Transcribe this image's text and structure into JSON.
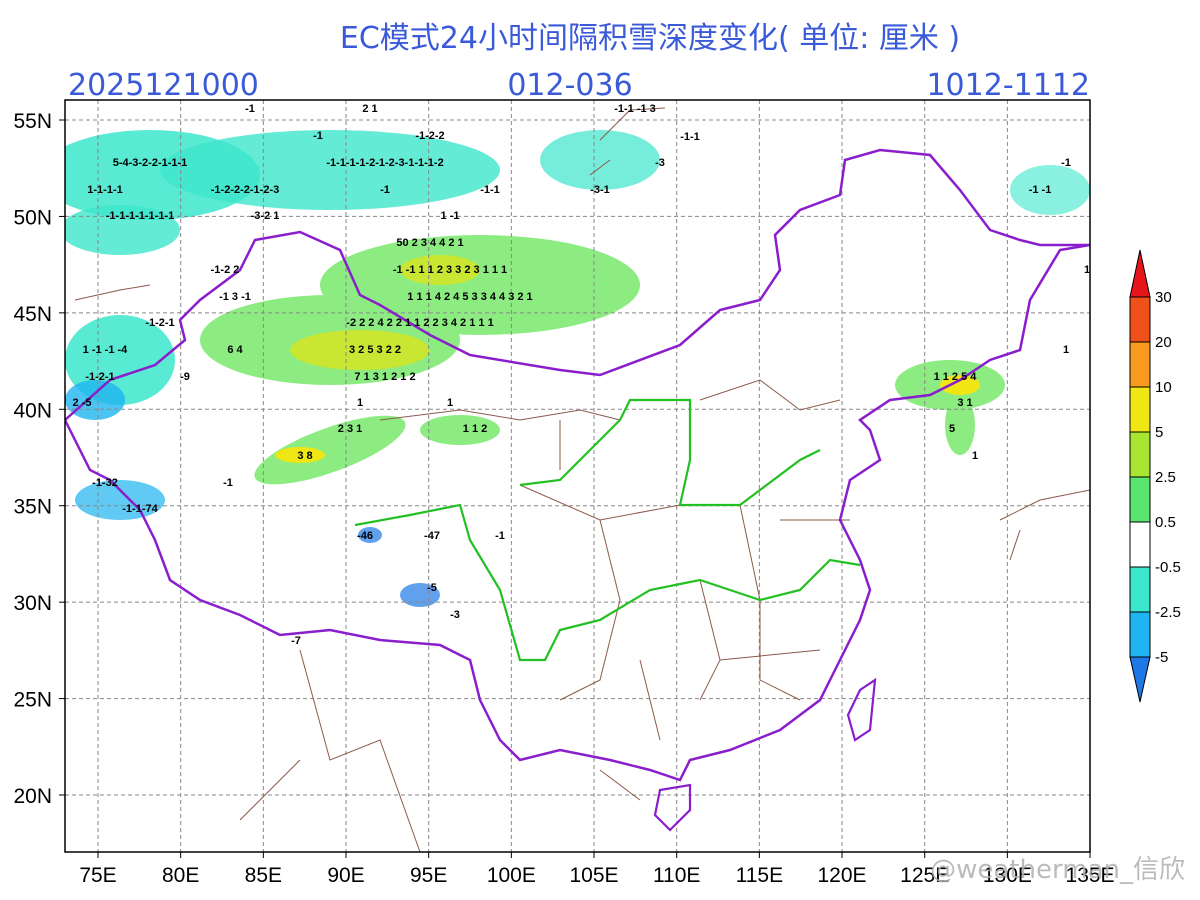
{
  "header": {
    "title": "EC模式24小时间隔积雪深度变化( 单位: 厘米 )",
    "init_time": "2025121000",
    "forecast_hours": "012-036",
    "valid_period": "1012-1112"
  },
  "axes": {
    "lat_ticks": [
      "55N",
      "50N",
      "45N",
      "40N",
      "35N",
      "30N",
      "25N",
      "20N"
    ],
    "lon_ticks": [
      "75E",
      "80E",
      "85E",
      "90E",
      "95E",
      "100E",
      "105E",
      "110E",
      "115E",
      "120E",
      "125E",
      "130E",
      "135E"
    ]
  },
  "colorbar": {
    "labels": [
      "30",
      "20",
      "10",
      "5",
      "2.5",
      "0.5",
      "-0.5",
      "-2.5",
      "-5"
    ],
    "colors": [
      "#e8141c",
      "#f0501a",
      "#f89a1e",
      "#f0e614",
      "#a8e632",
      "#5ae66e",
      "#ffffff",
      "#3ce6cc",
      "#1eb4f0",
      "#1e78e6"
    ]
  },
  "map_labels": [
    "-1",
    "2 1",
    "-1",
    "-1-2-2",
    "5-4-3-2-2-1-1-1",
    "-1-1-1-1-2-1-2-3-1-1-1-2",
    "1-1-1-1",
    "-1-2-2-2-1-2-3",
    "-1",
    "-1-1",
    "-1-1-1-1-1-1-1",
    "-3-2 1",
    "1 -1",
    "-1-1 -1 3",
    "-1-1",
    "-3",
    "-3-1",
    "50 2 3 4 4 2 1",
    "-1 -1 1 1 2 3 3 2 3 1 1 1",
    "1 1 1 4 2 4 5 3 3 4 4 3 2 1",
    "-1-2 2",
    "-1 3 -1",
    "-1-2-1",
    "-2 2 2 4 2 2 1 1 2 2 3 4 2 1 1 1",
    "1 -1 -1 -4",
    "6 4",
    "3 2 5 3 2 2",
    "7 1 3 1 2 1 2",
    "-1-2-1",
    "-9",
    "1 1 2 5 4",
    "2 -5",
    "1",
    "1",
    "3 1",
    "2 3 1",
    "1 1 2",
    "5",
    "3 8",
    "1",
    "-1",
    "-1-32",
    "-1-1-74",
    "-46",
    "-47",
    "-1",
    "-5",
    "-3",
    "-7",
    "-1",
    "-1 -1",
    "1",
    "1"
  ],
  "watermark": "@weatherman_信欣"
}
